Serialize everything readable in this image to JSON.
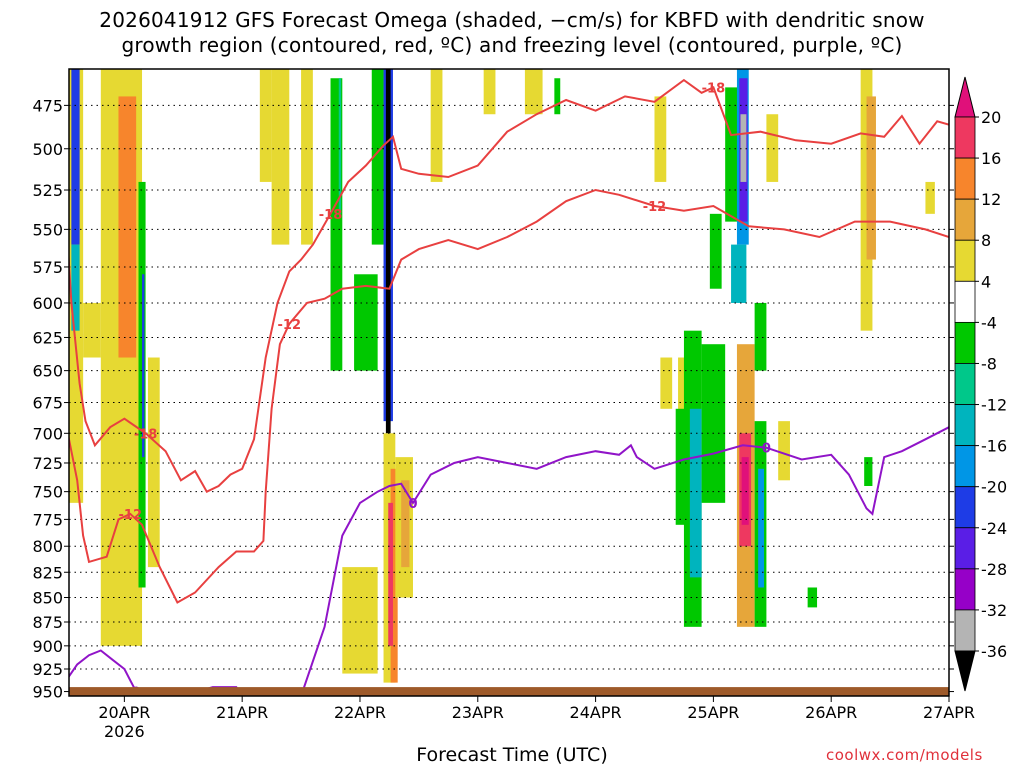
{
  "title_line1": "2026041912 GFS Forecast Omega (shaded, −cm/s) for KBFD with dendritic snow",
  "title_line2": "growth region (contoured, red, ºC) and freezing level (contoured, purple, ºC)",
  "xlabel": "Forecast Time (UTC)",
  "credit": "coolwx.com/models",
  "chart_data": {
    "type": "heatmap",
    "title": "2026041912 GFS Forecast Omega (shaded, −cm/s) for KBFD with dendritic snow growth region (contoured, red, ºC) and freezing level (contoured, purple, ºC)",
    "xlabel": "Forecast Time (UTC)",
    "ylabel": "",
    "x_ticks": [
      "20APR",
      "21APR",
      "22APR",
      "23APR",
      "24APR",
      "25APR",
      "26APR",
      "27APR"
    ],
    "x_sublabel": "2026",
    "xlim": [
      -0.47,
      7.0
    ],
    "y_ticks": [
      475,
      500,
      525,
      550,
      575,
      600,
      625,
      650,
      675,
      700,
      725,
      750,
      775,
      800,
      825,
      850,
      875,
      900,
      925,
      950
    ],
    "ylim": [
      955,
      455
    ],
    "y_scale": "log",
    "grid": true,
    "colorbar": {
      "levels": [
        20,
        16,
        12,
        8,
        4,
        -4,
        -8,
        -12,
        -16,
        -20,
        -24,
        -28,
        -32,
        -36
      ],
      "colors": [
        "#ee3860",
        "#f7852c",
        "#e6a63a",
        "#e6d932",
        "#ffffff",
        "#00c800",
        "#00c88a",
        "#00b4be",
        "#0096e6",
        "#1e3ce6",
        "#5a1ee6",
        "#9600c8",
        "#b4b4b4",
        "#000000"
      ],
      "over_color": "#e0107a",
      "under_color": "#000000"
    },
    "contours": [
      {
        "label": "-18",
        "color": "#e84040",
        "points": [
          [
            -0.48,
            560
          ],
          [
            -0.45,
            600
          ],
          [
            -0.38,
            660
          ],
          [
            -0.33,
            690
          ],
          [
            -0.25,
            710
          ],
          [
            -0.12,
            695
          ],
          [
            0.0,
            688
          ],
          [
            0.18,
            700
          ],
          [
            0.35,
            715
          ],
          [
            0.48,
            740
          ],
          [
            0.6,
            732
          ],
          [
            0.7,
            750
          ],
          [
            0.8,
            745
          ],
          [
            0.9,
            735
          ],
          [
            1.0,
            730
          ],
          [
            1.1,
            705
          ],
          [
            1.2,
            640
          ],
          [
            1.3,
            600
          ],
          [
            1.4,
            578
          ],
          [
            1.5,
            570
          ],
          [
            1.6,
            560
          ],
          [
            1.75,
            540
          ],
          [
            1.9,
            520
          ],
          [
            2.05,
            510
          ],
          [
            2.2,
            498
          ],
          [
            2.28,
            493
          ],
          [
            2.35,
            512
          ],
          [
            2.5,
            515
          ],
          [
            2.75,
            517
          ],
          [
            3.0,
            510
          ],
          [
            3.25,
            490
          ],
          [
            3.5,
            480
          ],
          [
            3.75,
            472
          ],
          [
            4.0,
            478
          ],
          [
            4.25,
            470
          ],
          [
            4.5,
            473
          ],
          [
            4.75,
            461
          ],
          [
            4.9,
            468
          ],
          [
            5.0,
            465
          ],
          [
            5.15,
            492
          ],
          [
            5.4,
            490
          ],
          [
            5.7,
            495
          ],
          [
            6.0,
            497
          ],
          [
            6.25,
            491
          ],
          [
            6.45,
            493
          ],
          [
            6.6,
            481
          ],
          [
            6.75,
            497
          ],
          [
            6.9,
            484
          ],
          [
            7.0,
            486
          ]
        ]
      },
      {
        "label": "-12",
        "color": "#e84040",
        "points": [
          [
            -0.48,
            700
          ],
          [
            -0.4,
            740
          ],
          [
            -0.35,
            790
          ],
          [
            -0.3,
            815
          ],
          [
            -0.15,
            810
          ],
          [
            -0.05,
            775
          ],
          [
            0.05,
            770
          ],
          [
            0.15,
            780
          ],
          [
            0.3,
            820
          ],
          [
            0.45,
            855
          ],
          [
            0.6,
            845
          ],
          [
            0.8,
            820
          ],
          [
            0.95,
            805
          ],
          [
            1.1,
            805
          ],
          [
            1.18,
            795
          ],
          [
            1.2,
            750
          ],
          [
            1.25,
            680
          ],
          [
            1.32,
            630
          ],
          [
            1.4,
            615
          ],
          [
            1.55,
            600
          ],
          [
            1.7,
            597
          ],
          [
            1.85,
            590
          ],
          [
            2.05,
            588
          ],
          [
            2.25,
            590
          ],
          [
            2.35,
            570
          ],
          [
            2.5,
            563
          ],
          [
            2.75,
            557
          ],
          [
            3.0,
            563
          ],
          [
            3.25,
            555
          ],
          [
            3.5,
            545
          ],
          [
            3.75,
            532
          ],
          [
            4.0,
            525
          ],
          [
            4.2,
            528
          ],
          [
            4.5,
            535
          ],
          [
            4.75,
            538
          ],
          [
            5.0,
            535
          ],
          [
            5.3,
            548
          ],
          [
            5.6,
            550
          ],
          [
            5.9,
            555
          ],
          [
            6.2,
            545
          ],
          [
            6.5,
            545
          ],
          [
            6.8,
            550
          ],
          [
            7.0,
            555
          ]
        ]
      },
      {
        "label": "0",
        "color": "#9014c8",
        "points": [
          [
            -0.48,
            935
          ],
          [
            -0.4,
            920
          ],
          [
            -0.3,
            910
          ],
          [
            -0.2,
            905
          ],
          [
            -0.1,
            915
          ],
          [
            0.0,
            925
          ],
          [
            0.1,
            950
          ],
          [
            0.5,
            955
          ],
          [
            0.75,
            945
          ],
          [
            0.95,
            945
          ],
          [
            1.0,
            955
          ],
          [
            1.5,
            955
          ],
          [
            1.7,
            880
          ],
          [
            1.85,
            790
          ],
          [
            2.0,
            760
          ],
          [
            2.15,
            750
          ],
          [
            2.25,
            745
          ],
          [
            2.35,
            743
          ],
          [
            2.45,
            760
          ],
          [
            2.6,
            735
          ],
          [
            2.8,
            725
          ],
          [
            3.0,
            720
          ],
          [
            3.25,
            725
          ],
          [
            3.5,
            730
          ],
          [
            3.75,
            720
          ],
          [
            4.0,
            715
          ],
          [
            4.2,
            718
          ],
          [
            4.3,
            710
          ],
          [
            4.35,
            720
          ],
          [
            4.5,
            730
          ],
          [
            4.75,
            722
          ],
          [
            5.0,
            717
          ],
          [
            5.25,
            710
          ],
          [
            5.45,
            712
          ],
          [
            5.75,
            722
          ],
          [
            6.0,
            718
          ],
          [
            6.15,
            735
          ],
          [
            6.3,
            765
          ],
          [
            6.35,
            770
          ],
          [
            6.45,
            720
          ],
          [
            6.6,
            715
          ],
          [
            6.8,
            705
          ],
          [
            7.0,
            695
          ]
        ]
      }
    ],
    "terrain_pressure": 945
  }
}
